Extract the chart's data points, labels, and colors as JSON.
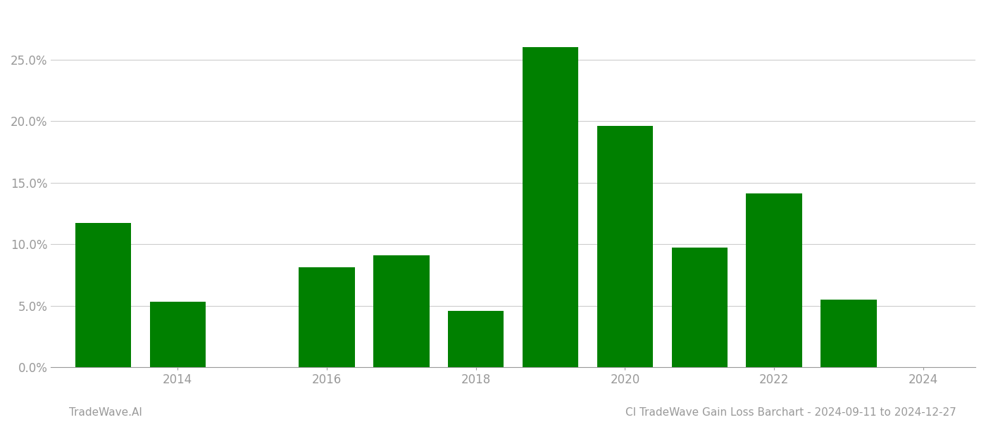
{
  "years": [
    2013,
    2014,
    2015,
    2016,
    2017,
    2018,
    2019,
    2020,
    2021,
    2022,
    2023
  ],
  "values": [
    0.117,
    0.053,
    0.0,
    0.081,
    0.091,
    0.046,
    0.26,
    0.196,
    0.097,
    0.141,
    0.055
  ],
  "bar_color": "#008000",
  "ylim": [
    0,
    0.29
  ],
  "yticks": [
    0.0,
    0.05,
    0.1,
    0.15,
    0.2,
    0.25
  ],
  "xlim": [
    2012.3,
    2024.7
  ],
  "xticks": [
    2014,
    2016,
    2018,
    2020,
    2022,
    2024
  ],
  "title": "CI TradeWave Gain Loss Barchart - 2024-09-11 to 2024-12-27",
  "watermark_left": "TradeWave.AI",
  "background_color": "#ffffff",
  "grid_color": "#cccccc",
  "tick_color": "#999999",
  "title_color": "#999999",
  "watermark_color": "#999999",
  "bar_width": 0.75,
  "figsize": [
    14.0,
    6.0
  ],
  "dpi": 100
}
